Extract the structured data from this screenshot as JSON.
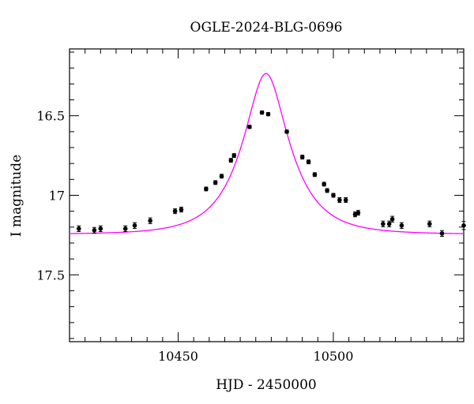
{
  "chart_data": {
    "type": "scatter",
    "title": "OGLE-2024-BLG-0696",
    "xlabel": "HJD - 2450000",
    "ylabel": "I magnitude",
    "xlim": [
      10415,
      10542
    ],
    "ylim": [
      17.92,
      16.08
    ],
    "y_inverted": true,
    "x_ticks": [
      10450,
      10500
    ],
    "x_tick_labels": [
      "10450",
      "10500"
    ],
    "y_ticks": [
      16.5,
      17,
      17.5
    ],
    "y_tick_labels": [
      "16.5",
      "17",
      "17.5"
    ],
    "grid": false,
    "model_color": "#ff00ff",
    "model": {
      "t0": 10478.3,
      "u0": 0.42,
      "tE": 14.0,
      "base_mag": 17.245
    },
    "series": [
      {
        "points": [
          {
            "x": 10418,
            "y": 17.21,
            "err": 0.018
          },
          {
            "x": 10423,
            "y": 17.22,
            "err": 0.018
          },
          {
            "x": 10425,
            "y": 17.21,
            "err": 0.018
          },
          {
            "x": 10433,
            "y": 17.21,
            "err": 0.018
          },
          {
            "x": 10436,
            "y": 17.19,
            "err": 0.018
          },
          {
            "x": 10441,
            "y": 17.16,
            "err": 0.018
          },
          {
            "x": 10449,
            "y": 17.1,
            "err": 0.015
          },
          {
            "x": 10451,
            "y": 17.09,
            "err": 0.015
          },
          {
            "x": 10459,
            "y": 16.96,
            "err": 0.012
          },
          {
            "x": 10462,
            "y": 16.92,
            "err": 0.012
          },
          {
            "x": 10464,
            "y": 16.88,
            "err": 0.012
          },
          {
            "x": 10467,
            "y": 16.78,
            "err": 0.012
          },
          {
            "x": 10468,
            "y": 16.75,
            "err": 0.012
          },
          {
            "x": 10473,
            "y": 16.57,
            "err": 0.01
          },
          {
            "x": 10477,
            "y": 16.48,
            "err": 0.01
          },
          {
            "x": 10479,
            "y": 16.49,
            "err": 0.01
          },
          {
            "x": 10485,
            "y": 16.6,
            "err": 0.01
          },
          {
            "x": 10490,
            "y": 16.76,
            "err": 0.012
          },
          {
            "x": 10492,
            "y": 16.79,
            "err": 0.012
          },
          {
            "x": 10494,
            "y": 16.87,
            "err": 0.012
          },
          {
            "x": 10497,
            "y": 16.93,
            "err": 0.012
          },
          {
            "x": 10498,
            "y": 16.97,
            "err": 0.012
          },
          {
            "x": 10500,
            "y": 17.0,
            "err": 0.012
          },
          {
            "x": 10502,
            "y": 17.03,
            "err": 0.015
          },
          {
            "x": 10504,
            "y": 17.03,
            "err": 0.015
          },
          {
            "x": 10507,
            "y": 17.12,
            "err": 0.015
          },
          {
            "x": 10508,
            "y": 17.11,
            "err": 0.015
          },
          {
            "x": 10516,
            "y": 17.18,
            "err": 0.018
          },
          {
            "x": 10518,
            "y": 17.18,
            "err": 0.018
          },
          {
            "x": 10519,
            "y": 17.15,
            "err": 0.018
          },
          {
            "x": 10522,
            "y": 17.19,
            "err": 0.018
          },
          {
            "x": 10531,
            "y": 17.18,
            "err": 0.018
          },
          {
            "x": 10535,
            "y": 17.24,
            "err": 0.018
          },
          {
            "x": 10542,
            "y": 17.19,
            "err": 0.025
          }
        ]
      }
    ]
  }
}
